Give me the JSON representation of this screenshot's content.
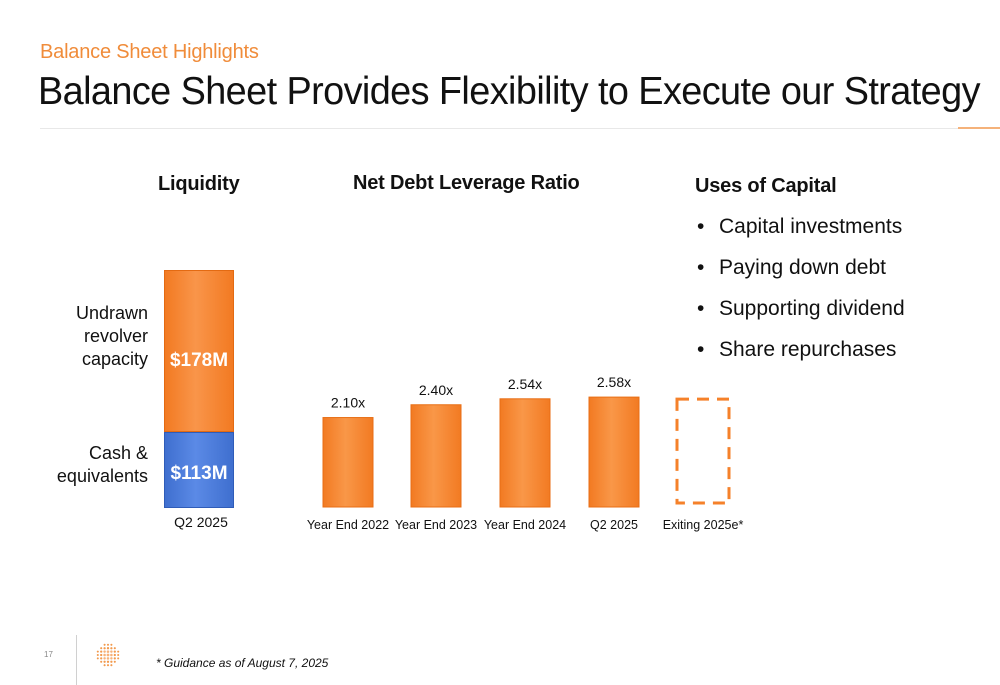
{
  "header": {
    "subtitle": "Balance Sheet Highlights",
    "title": "Balance Sheet Provides Flexibility to Execute our Strategy"
  },
  "liquidity": {
    "heading": "Liquidity",
    "revolver_label_lines": [
      "Undrawn",
      "revolver",
      "capacity"
    ],
    "revolver_value": "$178M",
    "cash_label_lines": [
      "Cash &",
      "equivalents"
    ],
    "cash_value": "$113M",
    "period": "Q2 2025"
  },
  "chart_data": [
    {
      "type": "bar",
      "title": "Liquidity",
      "categories": [
        "Q2 2025"
      ],
      "stacked": true,
      "series": [
        {
          "name": "Cash & equivalents",
          "values": [
            113
          ],
          "label": "$113M",
          "color": "#4A78D8"
        },
        {
          "name": "Undrawn revolver capacity",
          "values": [
            178
          ],
          "label": "$178M",
          "color": "#F5812A"
        }
      ]
    },
    {
      "type": "bar",
      "title": "Net Debt Leverage Ratio",
      "categories": [
        "Year End 2022",
        "Year End 2023",
        "Year End 2024",
        "Q2 2025",
        "Exiting 2025e*"
      ],
      "values": [
        2.1,
        2.4,
        2.54,
        2.58,
        null
      ],
      "data_labels": [
        "2.10x",
        "2.40x",
        "2.54x",
        "2.58x",
        ""
      ],
      "placeholder_category": "Exiting 2025e*",
      "color": "#F5812A"
    }
  ],
  "uses_of_capital": {
    "heading": "Uses of Capital",
    "bullet": "•",
    "items": [
      "Capital investments",
      "Paying down debt",
      "Supporting dividend",
      "Share repurchases"
    ]
  },
  "footer": {
    "page_number": "17",
    "footnote": "* Guidance as of August 7, 2025"
  },
  "colors": {
    "accent_orange": "#F08C3A",
    "bar_orange": "#F5812A",
    "bar_blue": "#4A78D8"
  }
}
